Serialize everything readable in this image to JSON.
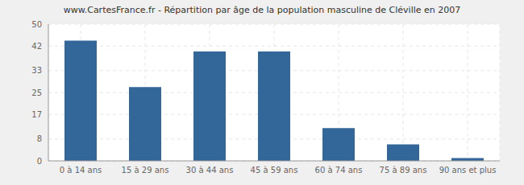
{
  "chart_data": {
    "type": "bar",
    "title": "www.CartesFrance.fr - Répartition par âge de la population masculine de Cléville en 2007",
    "categories": [
      "0 à 14 ans",
      "15 à 29 ans",
      "30 à 44 ans",
      "45 à 59 ans",
      "60 à 74 ans",
      "75 à 89 ans",
      "90 ans et plus"
    ],
    "values": [
      44,
      27,
      40,
      40,
      12,
      6,
      1
    ],
    "color": "#336699",
    "ylim": [
      0,
      50
    ],
    "yticks": [
      0,
      8,
      17,
      25,
      33,
      42,
      50
    ],
    "grid": true
  }
}
